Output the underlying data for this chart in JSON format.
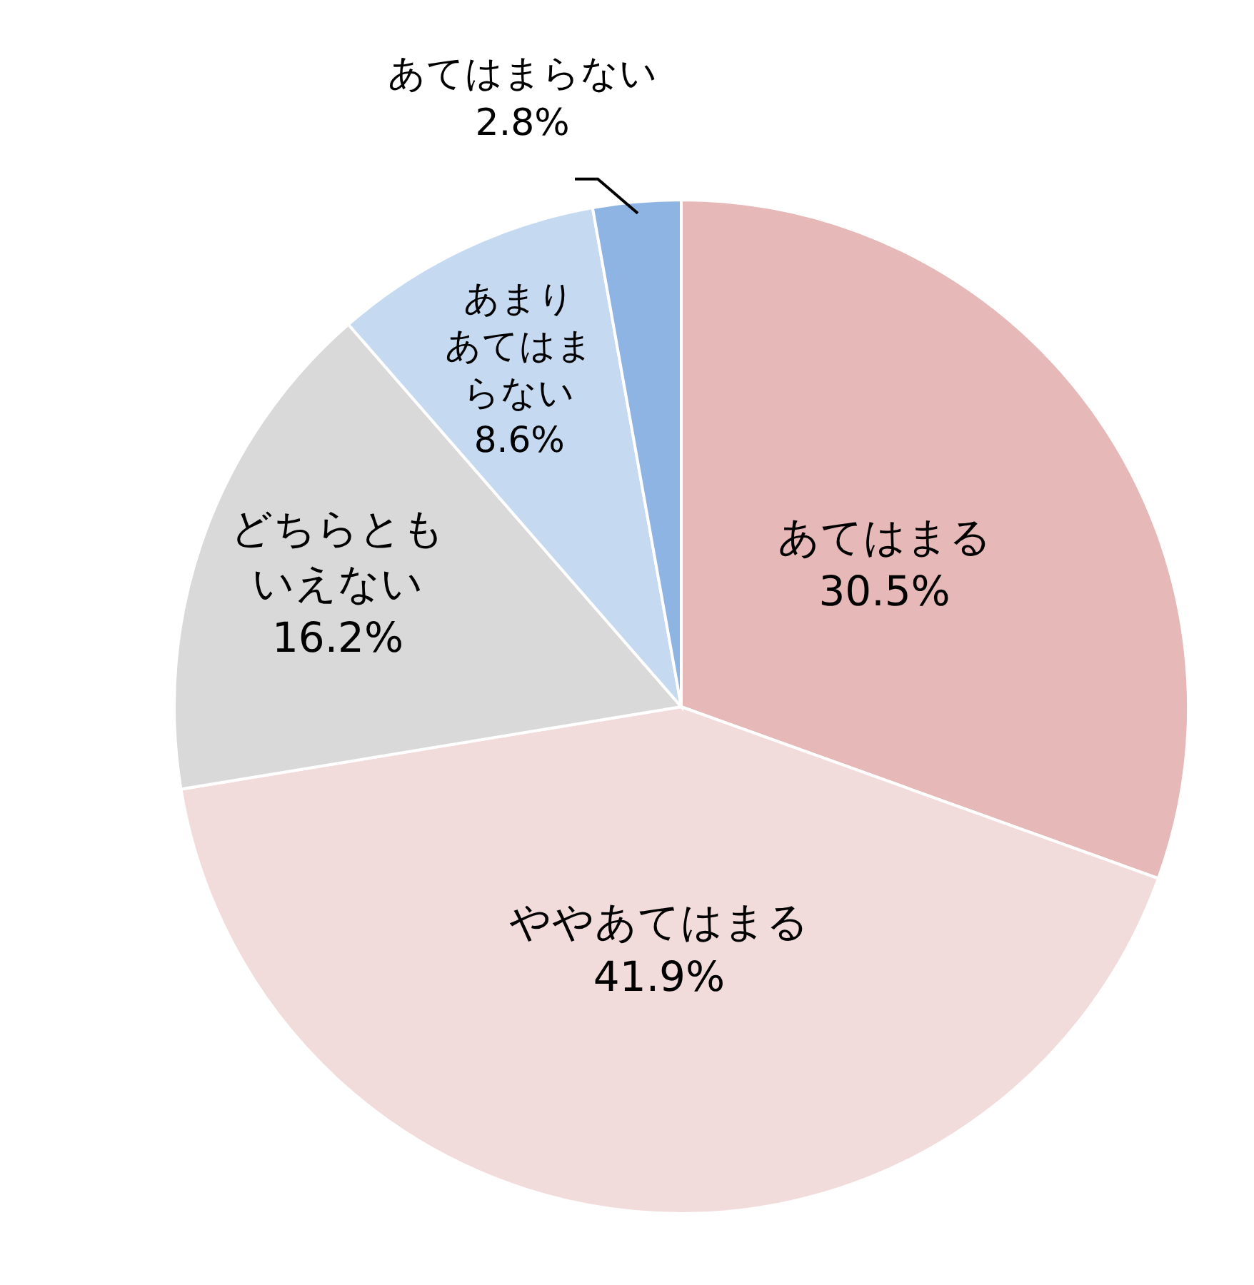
{
  "chart_data": {
    "type": "pie",
    "categories": [
      "あてはまる",
      "ややあてはまる",
      "どちらともいえない",
      "あまりあてはまらない",
      "あてはまらない"
    ],
    "values": [
      30.5,
      41.9,
      16.2,
      8.6,
      2.8
    ],
    "colors": [
      "#e6b8b7",
      "#f2dcdb",
      "#d9d9d9",
      "#c5d9f1",
      "#8db4e2"
    ],
    "value_labels": [
      "30.5%",
      "41.9%",
      "16.2%",
      "8.6%",
      "2.8%"
    ],
    "legend": false
  }
}
